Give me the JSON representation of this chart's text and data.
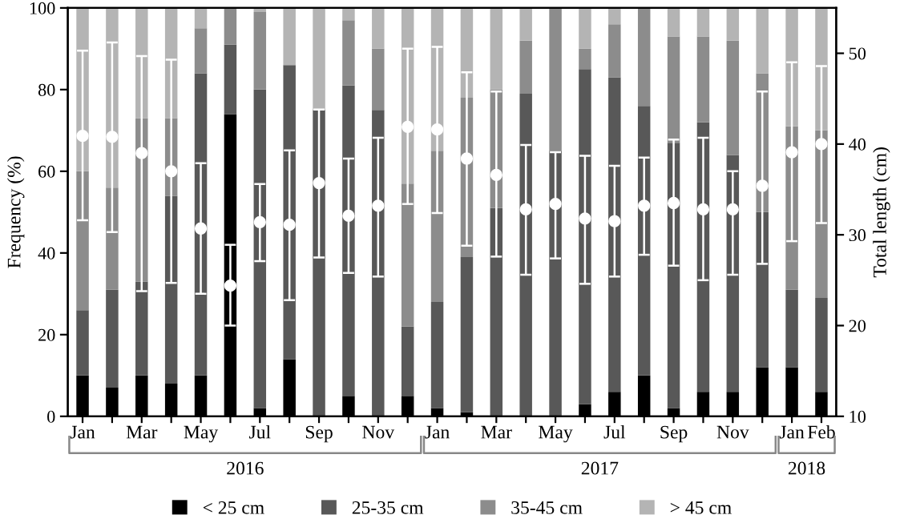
{
  "chart_data": {
    "type": "bar",
    "stacked": true,
    "ylabel": "Frequency (%)",
    "y2label": "Total length (cm)",
    "categories": [
      "Jan",
      null,
      "Mar",
      null,
      "May",
      null,
      "Jul",
      null,
      "Sep",
      null,
      "Nov",
      null,
      "Jan",
      null,
      "Mar",
      null,
      "May",
      null,
      "Jul",
      null,
      "Sep",
      null,
      "Nov",
      null,
      "Jan",
      "Feb"
    ],
    "series": [
      {
        "name": "< 25 cm",
        "color": "#000000",
        "values": [
          10,
          7,
          10,
          8,
          10,
          74,
          2,
          14,
          0,
          5,
          0,
          5,
          2,
          1,
          0,
          0,
          0,
          3,
          6,
          10,
          2,
          6,
          6,
          12,
          12,
          6
        ]
      },
      {
        "name": "25-35 cm",
        "color": "#585858",
        "values": [
          16,
          24,
          23,
          46,
          74,
          17,
          78,
          72,
          75,
          76,
          75,
          17,
          26,
          38,
          51,
          79,
          65,
          82,
          77,
          66,
          65,
          66,
          58,
          38,
          19,
          23
        ]
      },
      {
        "name": "35-45 cm",
        "color": "#8c8c8c",
        "values": [
          34,
          25,
          40,
          19,
          11,
          9,
          19,
          0,
          0,
          16,
          15,
          35,
          37,
          39,
          29,
          13,
          35,
          5,
          13,
          24,
          26,
          21,
          28,
          34,
          40,
          41
        ]
      },
      {
        "name": "> 45 cm",
        "color": "#b4b4b4",
        "values": [
          40,
          44,
          27,
          27,
          5,
          0,
          1,
          14,
          25,
          3,
          10,
          43,
          35,
          22,
          20,
          8,
          0,
          10,
          4,
          0,
          7,
          7,
          8,
          16,
          29,
          30
        ]
      },
      {
        "type": "scatter",
        "axis": "y2",
        "color": "#ffffff",
        "marker": "circle",
        "values": [
          40.9,
          40.8,
          39.0,
          37.0,
          30.7,
          24.4,
          31.4,
          31.1,
          35.7,
          32.1,
          33.2,
          41.9,
          41.6,
          38.4,
          36.6,
          32.8,
          33.4,
          31.8,
          31.5,
          33.2,
          33.5,
          32.8,
          32.8,
          35.4,
          39.1,
          40.0
        ],
        "errors": [
          [
            31.6,
            50.3
          ],
          [
            30.3,
            51.2
          ],
          [
            23.8,
            49.7
          ],
          [
            24.7,
            49.3
          ],
          [
            23.5,
            37.9
          ],
          [
            20.0,
            28.9
          ],
          [
            27.1,
            35.6
          ],
          [
            22.8,
            39.3
          ],
          [
            27.5,
            43.8
          ],
          [
            25.8,
            38.4
          ],
          [
            25.4,
            40.7
          ],
          [
            33.4,
            50.5
          ],
          [
            32.4,
            50.7
          ],
          [
            28.8,
            47.9
          ],
          [
            27.6,
            45.8
          ],
          [
            25.6,
            39.9
          ],
          [
            27.4,
            39.1
          ],
          [
            24.6,
            38.7
          ],
          [
            25.4,
            37.6
          ],
          [
            27.8,
            38.5
          ],
          [
            26.6,
            40.5
          ],
          [
            25.0,
            40.7
          ],
          [
            25.6,
            37.0
          ],
          [
            26.8,
            45.8
          ],
          [
            29.3,
            49.0
          ],
          [
            31.3,
            48.6
          ]
        ]
      }
    ],
    "ylim": [
      0,
      100
    ],
    "yticks": [
      0,
      20,
      40,
      60,
      80,
      100
    ],
    "y2lim": [
      10,
      55
    ],
    "y2ticks": [
      10,
      20,
      30,
      40,
      50
    ],
    "annotations": [
      "2016",
      "2017",
      "2018"
    ],
    "legend": "bottom",
    "grid": false
  }
}
